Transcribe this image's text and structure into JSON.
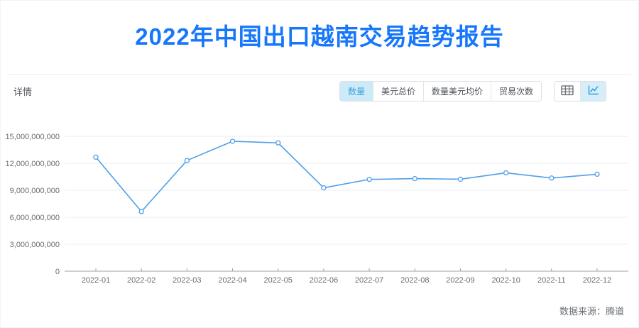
{
  "page": {
    "title": "2022年中国出口越南交易趋势报告",
    "section_label": "详情",
    "source_note": "数据来源：腾道"
  },
  "toolbar": {
    "tabs": [
      {
        "label": "数量",
        "selected": true
      },
      {
        "label": "美元总价",
        "selected": false
      },
      {
        "label": "数量美元均价",
        "selected": false
      },
      {
        "label": "贸易次数",
        "selected": false
      }
    ],
    "view_switch": [
      {
        "name": "table-view",
        "selected": false
      },
      {
        "name": "chart-view",
        "selected": true
      }
    ]
  },
  "colors": {
    "title": "#1677fb",
    "line": "#4f9fe8",
    "grid": "#e9eef6",
    "axis": "#9aa0a6",
    "tick_label": "#666b73",
    "tab_selected_bg": "#cdeaf8",
    "tab_selected_text": "#3aa2da",
    "view_selected_bg": "#d6eef9",
    "view_icon_active": "#2e9fd4",
    "view_icon_inactive": "#5f6368"
  },
  "chart_data": {
    "type": "line",
    "title": "2022年中国出口越南交易趋势报告",
    "x": [
      "2022-01",
      "2022-02",
      "2022-03",
      "2022-04",
      "2022-05",
      "2022-06",
      "2022-07",
      "2022-08",
      "2022-09",
      "2022-10",
      "2022-11",
      "2022-12"
    ],
    "series": [
      {
        "name": "数量",
        "values": [
          12680000000,
          6630000000,
          12310000000,
          14450000000,
          14270000000,
          9270000000,
          10210000000,
          10300000000,
          10230000000,
          10940000000,
          10360000000,
          10780000000
        ]
      }
    ],
    "xlabel": "",
    "ylabel": "",
    "ylim": [
      0,
      15000000000
    ],
    "yticks": [
      0,
      3000000000,
      6000000000,
      9000000000,
      12000000000,
      15000000000
    ],
    "grid": true,
    "legend": "none",
    "point_style": "hollow-circle"
  }
}
